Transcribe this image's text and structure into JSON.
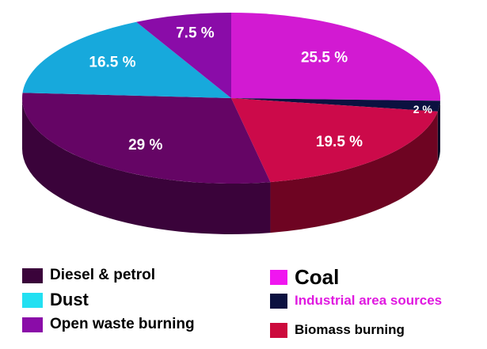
{
  "chart_data": {
    "type": "pie",
    "title": "",
    "slices": [
      {
        "label": "Coal",
        "value": 25.5,
        "value_label": "25.5 %",
        "color": "#d21ad2",
        "side_color": "#9a0f9a"
      },
      {
        "label": "Industrial area sources",
        "value": 2,
        "value_label": "2 %",
        "color": "#0b1140",
        "side_color": "#050822"
      },
      {
        "label": "Biomass burning",
        "value": 19.5,
        "value_label": "19.5 %",
        "color": "#cc0a4a",
        "side_color": "#6e0422"
      },
      {
        "label": "Diesel & petrol",
        "value": 29,
        "value_label": "29 %",
        "color": "#650565",
        "side_color": "#3a033a"
      },
      {
        "label": "Dust",
        "value": 16.5,
        "value_label": "16.5 %",
        "color": "#17a9dc",
        "side_color": "#0f7aa0"
      },
      {
        "label": "Open waste burning",
        "value": 7.5,
        "value_label": "7.5 %",
        "color": "#8a0ca8",
        "side_color": "#5a0870"
      }
    ]
  },
  "legend": [
    {
      "label": "Diesel & petrol",
      "color": "#3a033a",
      "text_color": "#000000"
    },
    {
      "label": "Dust",
      "color": "#22e0f2",
      "text_color": "#000000"
    },
    {
      "label": "Open waste burning",
      "color": "#8a0ca8",
      "text_color": "#000000"
    },
    {
      "label": "Coal",
      "color": "#f016f0",
      "text_color": "#000000"
    },
    {
      "label": "Industrial area sources",
      "color": "#0b1140",
      "text_color": "#e019e0"
    },
    {
      "label": "Biomass burning",
      "color": "#cc0a3c",
      "text_color": "#000000"
    }
  ]
}
